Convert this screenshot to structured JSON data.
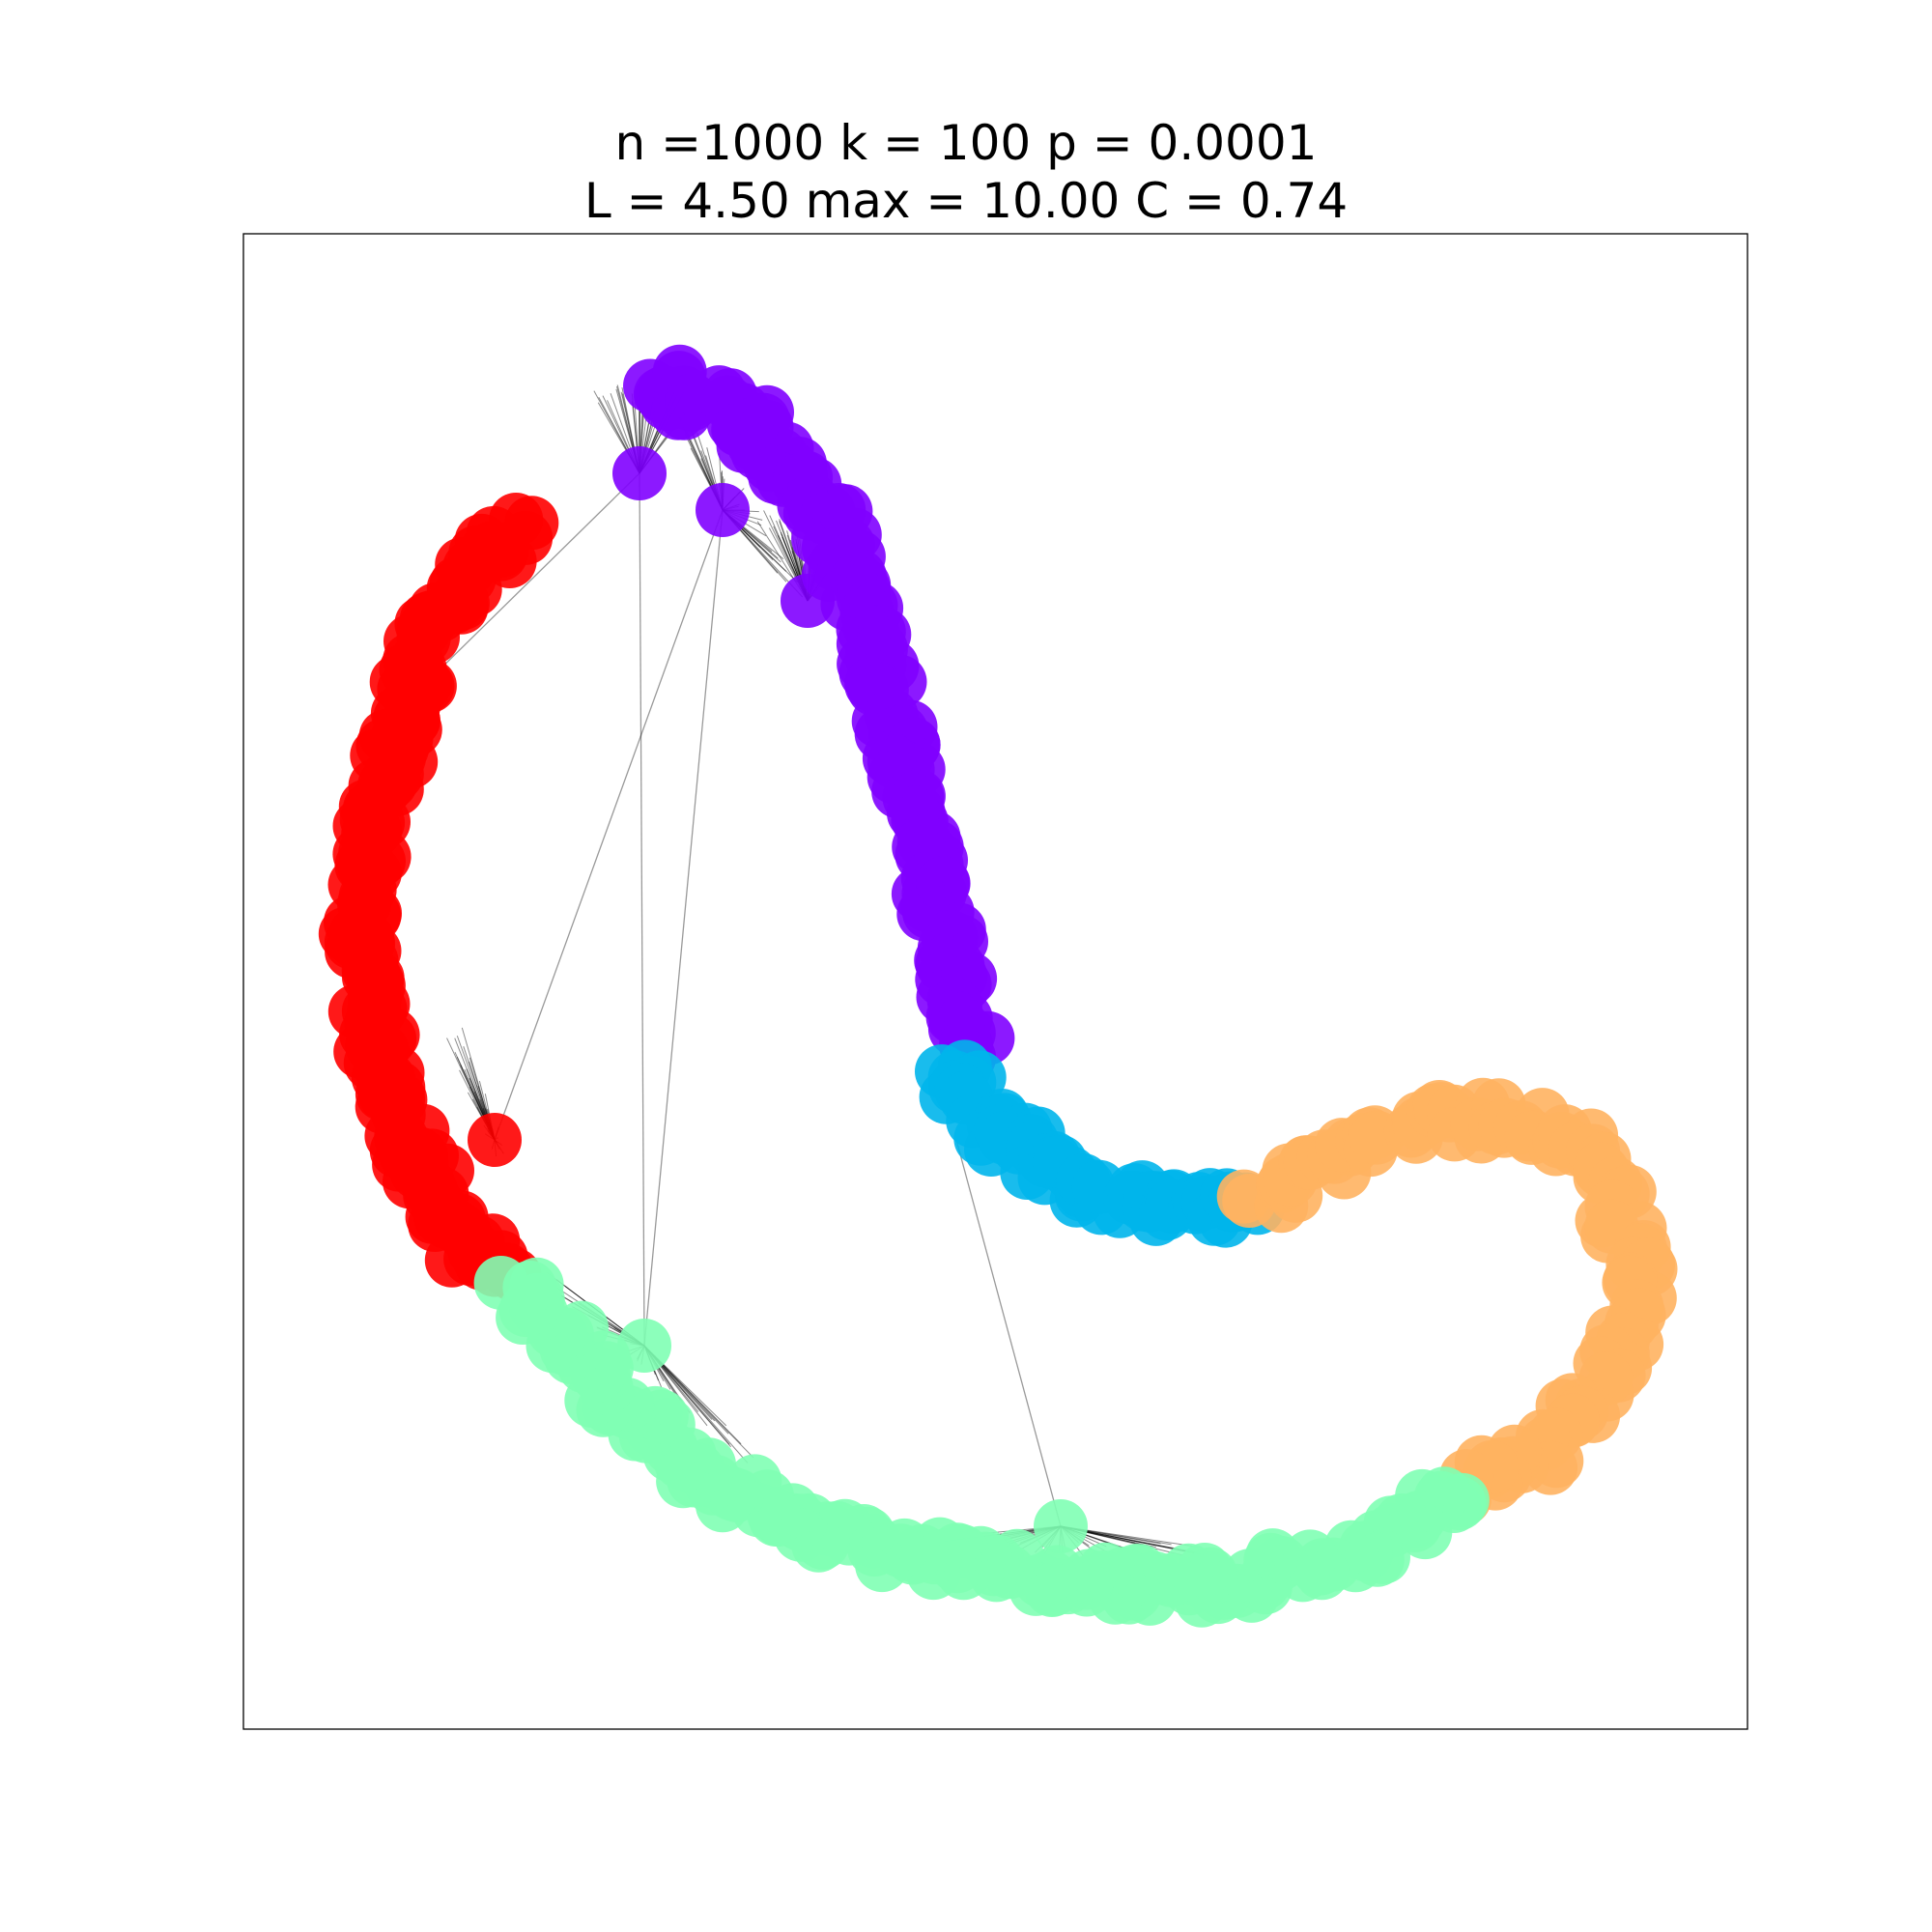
{
  "title": {
    "line1": "n =1000 k = 100 p = 0.0001",
    "line2": "L = 4.50 max = 10.00 C = 0.74"
  },
  "graph": {
    "node_alpha": 0.9,
    "edge_color": "#000000",
    "clusters": [
      {
        "name": "red",
        "color": "#ff0000"
      },
      {
        "name": "purple",
        "color": "#8000ff"
      },
      {
        "name": "cyan",
        "color": "#00b5eb"
      },
      {
        "name": "orange",
        "color": "#ffb360"
      },
      {
        "name": "green",
        "color": "#80ffb4"
      }
    ]
  }
}
